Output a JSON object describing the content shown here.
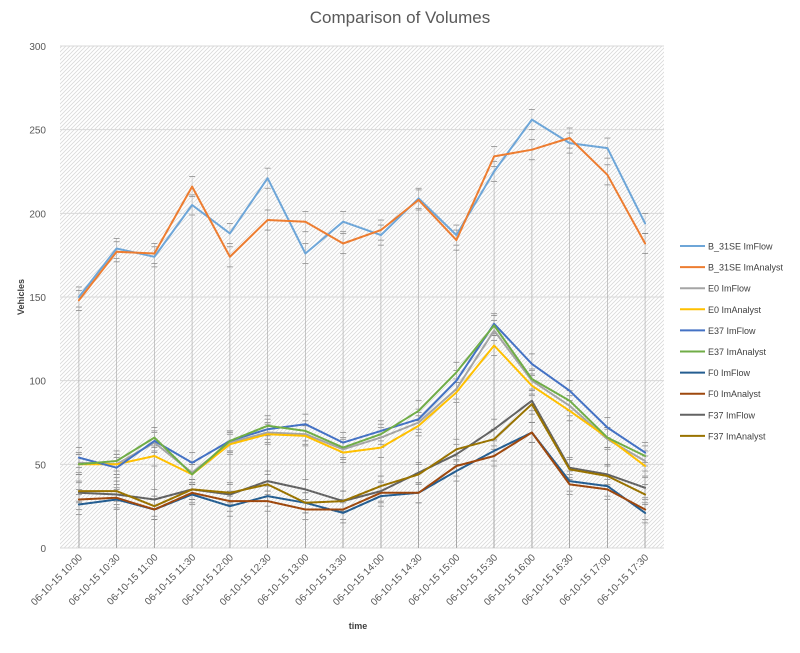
{
  "chart_data": {
    "type": "line",
    "title": "Comparison of Volumes",
    "xlabel": "time",
    "ylabel": "Vehicles",
    "ylim": [
      0,
      300
    ],
    "yticks": [
      0,
      50,
      100,
      150,
      200,
      250,
      300
    ],
    "grid": true,
    "error_bars": true,
    "legend_position": "right",
    "categories": [
      "06-10-15 10:00",
      "06-10-15 10:30",
      "06-10-15 11:00",
      "06-10-15 11:30",
      "06-10-15 12:00",
      "06-10-15 12:30",
      "06-10-15 13:00",
      "06-10-15 13:30",
      "06-10-15 14:00",
      "06-10-15 14:30",
      "06-10-15 15:00",
      "06-10-15 15:30",
      "06-10-15 16:00",
      "06-10-15 16:30",
      "06-10-15 17:00",
      "06-10-15 17:30"
    ],
    "series": [
      {
        "name": "B_31SE ImFlow",
        "color": "#6ea6d8",
        "values": [
          150,
          179,
          174,
          205,
          188,
          221,
          176,
          195,
          187,
          209,
          187,
          225,
          256,
          242,
          239,
          194
        ]
      },
      {
        "name": "B_31SE ImAnalyst",
        "color": "#ed7d31",
        "values": [
          148,
          177,
          176,
          216,
          174,
          196,
          195,
          182,
          190,
          208,
          184,
          234,
          238,
          245,
          223,
          182
        ]
      },
      {
        "name": "E0 ImFlow",
        "color": "#a5a5a5",
        "values": [
          51,
          50,
          63,
          45,
          63,
          69,
          68,
          59,
          66,
          75,
          95,
          130,
          100,
          85,
          65,
          52
        ]
      },
      {
        "name": "E0 ImAnalyst",
        "color": "#ffc000",
        "values": [
          50,
          50,
          55,
          44,
          62,
          68,
          67,
          57,
          60,
          73,
          93,
          121,
          97,
          82,
          66,
          49
        ]
      },
      {
        "name": "E37 ImFlow",
        "color": "#4472c4",
        "values": [
          54,
          48,
          64,
          51,
          64,
          71,
          74,
          63,
          70,
          77,
          100,
          134,
          110,
          94,
          72,
          57
        ]
      },
      {
        "name": "E37 ImAnalyst",
        "color": "#70ad47",
        "values": [
          50,
          52,
          66,
          44,
          64,
          73,
          70,
          60,
          68,
          82,
          105,
          133,
          101,
          88,
          66,
          55
        ]
      },
      {
        "name": "F0 ImFlow",
        "color": "#255e91",
        "values": [
          26,
          29,
          23,
          32,
          25,
          31,
          27,
          21,
          31,
          33,
          46,
          58,
          69,
          40,
          37,
          21
        ]
      },
      {
        "name": "F0 ImAnalyst",
        "color": "#9e480e",
        "values": [
          29,
          30,
          23,
          33,
          28,
          28,
          23,
          23,
          33,
          33,
          49,
          55,
          69,
          38,
          35,
          23
        ]
      },
      {
        "name": "F37 ImFlow",
        "color": "#636363",
        "values": [
          33,
          32,
          29,
          35,
          32,
          40,
          35,
          28,
          34,
          45,
          56,
          71,
          88,
          48,
          44,
          36
        ]
      },
      {
        "name": "F37 ImAnalyst",
        "color": "#997300",
        "values": [
          34,
          34,
          25,
          35,
          33,
          38,
          27,
          28,
          37,
          44,
          59,
          65,
          86,
          47,
          43,
          32
        ]
      }
    ]
  }
}
